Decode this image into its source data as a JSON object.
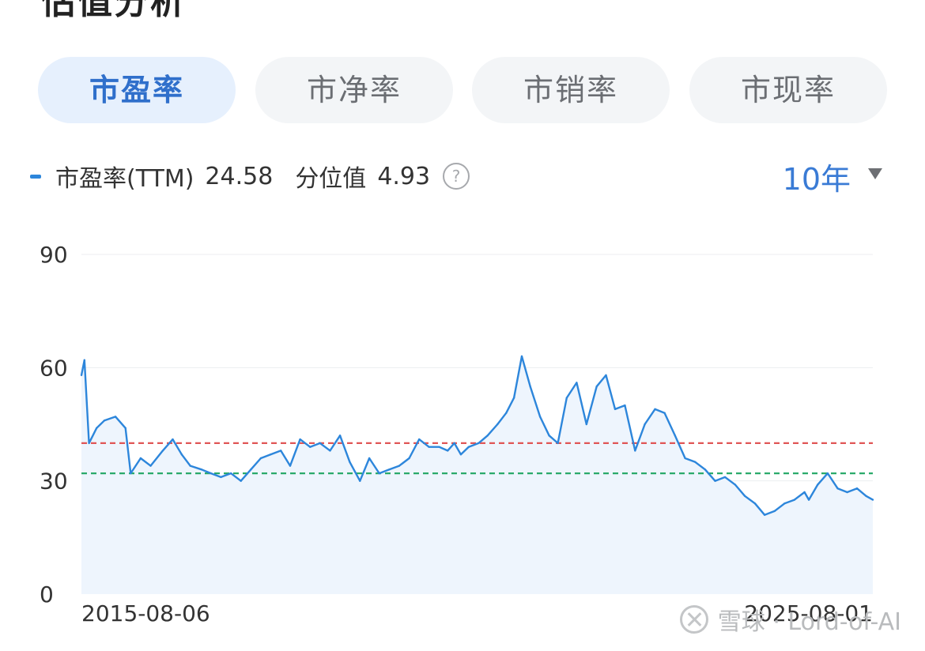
{
  "section_title": "估值分析",
  "tabs": [
    {
      "label": "市盈率",
      "active": true
    },
    {
      "label": "市净率",
      "active": false
    },
    {
      "label": "市销率",
      "active": false
    },
    {
      "label": "市现率",
      "active": false
    }
  ],
  "metric": {
    "name": "市盈率(TTM)",
    "value": "24.58",
    "percentile_label": "分位值",
    "percentile_value": "4.93",
    "help_glyph": "?"
  },
  "period": {
    "label": "10年"
  },
  "watermark": {
    "text": "雪球 · Lord-of-AI"
  },
  "colors": {
    "accent": "#3a7bd5",
    "line": "#2d86db",
    "area": "#eef5fd",
    "upper_ref": "#e05656",
    "lower_ref": "#2aaa6a"
  },
  "chart_data": {
    "type": "line",
    "title": "",
    "xlabel": "",
    "ylabel": "",
    "ylim": [
      0,
      90
    ],
    "yticks": [
      "0",
      "30",
      "60",
      "90"
    ],
    "x_start_label": "2015-08-06",
    "x_end_label": "2025-08-01",
    "grid": true,
    "reference_lines": [
      {
        "value": 40,
        "style": "dashed",
        "color": "#e05656"
      },
      {
        "value": 32,
        "style": "dashed",
        "color": "#2aaa6a"
      }
    ],
    "series": [
      {
        "x": [
          "2015-08-06",
          "2015-08-20",
          "2015-09-10",
          "2015-10-15",
          "2015-11-20",
          "2016-01-10",
          "2016-02-25",
          "2016-03-20",
          "2016-05-05",
          "2016-06-20",
          "2016-08-15",
          "2016-09-30",
          "2016-11-10",
          "2016-12-20",
          "2017-02-10",
          "2017-03-25",
          "2017-05-10",
          "2017-06-25",
          "2017-08-10",
          "2017-09-25",
          "2017-11-10",
          "2017-12-25",
          "2018-02-10",
          "2018-03-25",
          "2018-05-10",
          "2018-06-25",
          "2018-08-10",
          "2018-09-25",
          "2018-11-10",
          "2018-12-25",
          "2019-02-10",
          "2019-03-25",
          "2019-05-10",
          "2019-06-25",
          "2019-08-10",
          "2019-09-25",
          "2019-11-10",
          "2019-12-25",
          "2020-02-10",
          "2020-03-20",
          "2020-04-20",
          "2020-05-20",
          "2020-06-25",
          "2020-08-10",
          "2020-09-20",
          "2020-11-05",
          "2020-12-15",
          "2021-01-20",
          "2021-02-25",
          "2021-04-05",
          "2021-05-20",
          "2021-07-01",
          "2021-08-10",
          "2021-09-20",
          "2021-11-05",
          "2021-12-20",
          "2022-02-05",
          "2022-03-20",
          "2022-05-01",
          "2022-06-15",
          "2022-08-01",
          "2022-09-15",
          "2022-11-01",
          "2022-12-15",
          "2023-02-01",
          "2023-03-20",
          "2023-05-05",
          "2023-06-20",
          "2023-08-05",
          "2023-09-20",
          "2023-11-05",
          "2023-12-20",
          "2024-02-05",
          "2024-03-20",
          "2024-05-05",
          "2024-06-20",
          "2024-08-05",
          "2024-09-20",
          "2024-10-10",
          "2024-11-20",
          "2025-01-05",
          "2025-02-20",
          "2025-04-05",
          "2025-05-20",
          "2025-07-01",
          "2025-08-01"
        ],
        "values": [
          58,
          62,
          40,
          44,
          46,
          47,
          44,
          32,
          36,
          34,
          38,
          41,
          37,
          34,
          33,
          32,
          31,
          32,
          30,
          33,
          36,
          37,
          38,
          34,
          41,
          39,
          40,
          38,
          42,
          35,
          30,
          36,
          32,
          33,
          34,
          36,
          41,
          39,
          39,
          38,
          40,
          37,
          39,
          40,
          42,
          45,
          48,
          52,
          63,
          55,
          47,
          42,
          40,
          52,
          56,
          45,
          55,
          58,
          49,
          50,
          38,
          45,
          49,
          48,
          42,
          36,
          35,
          33,
          30,
          31,
          29,
          26,
          24,
          21,
          22,
          24,
          25,
          27,
          25,
          29,
          32,
          28,
          27,
          28,
          26,
          25
        ]
      }
    ]
  }
}
